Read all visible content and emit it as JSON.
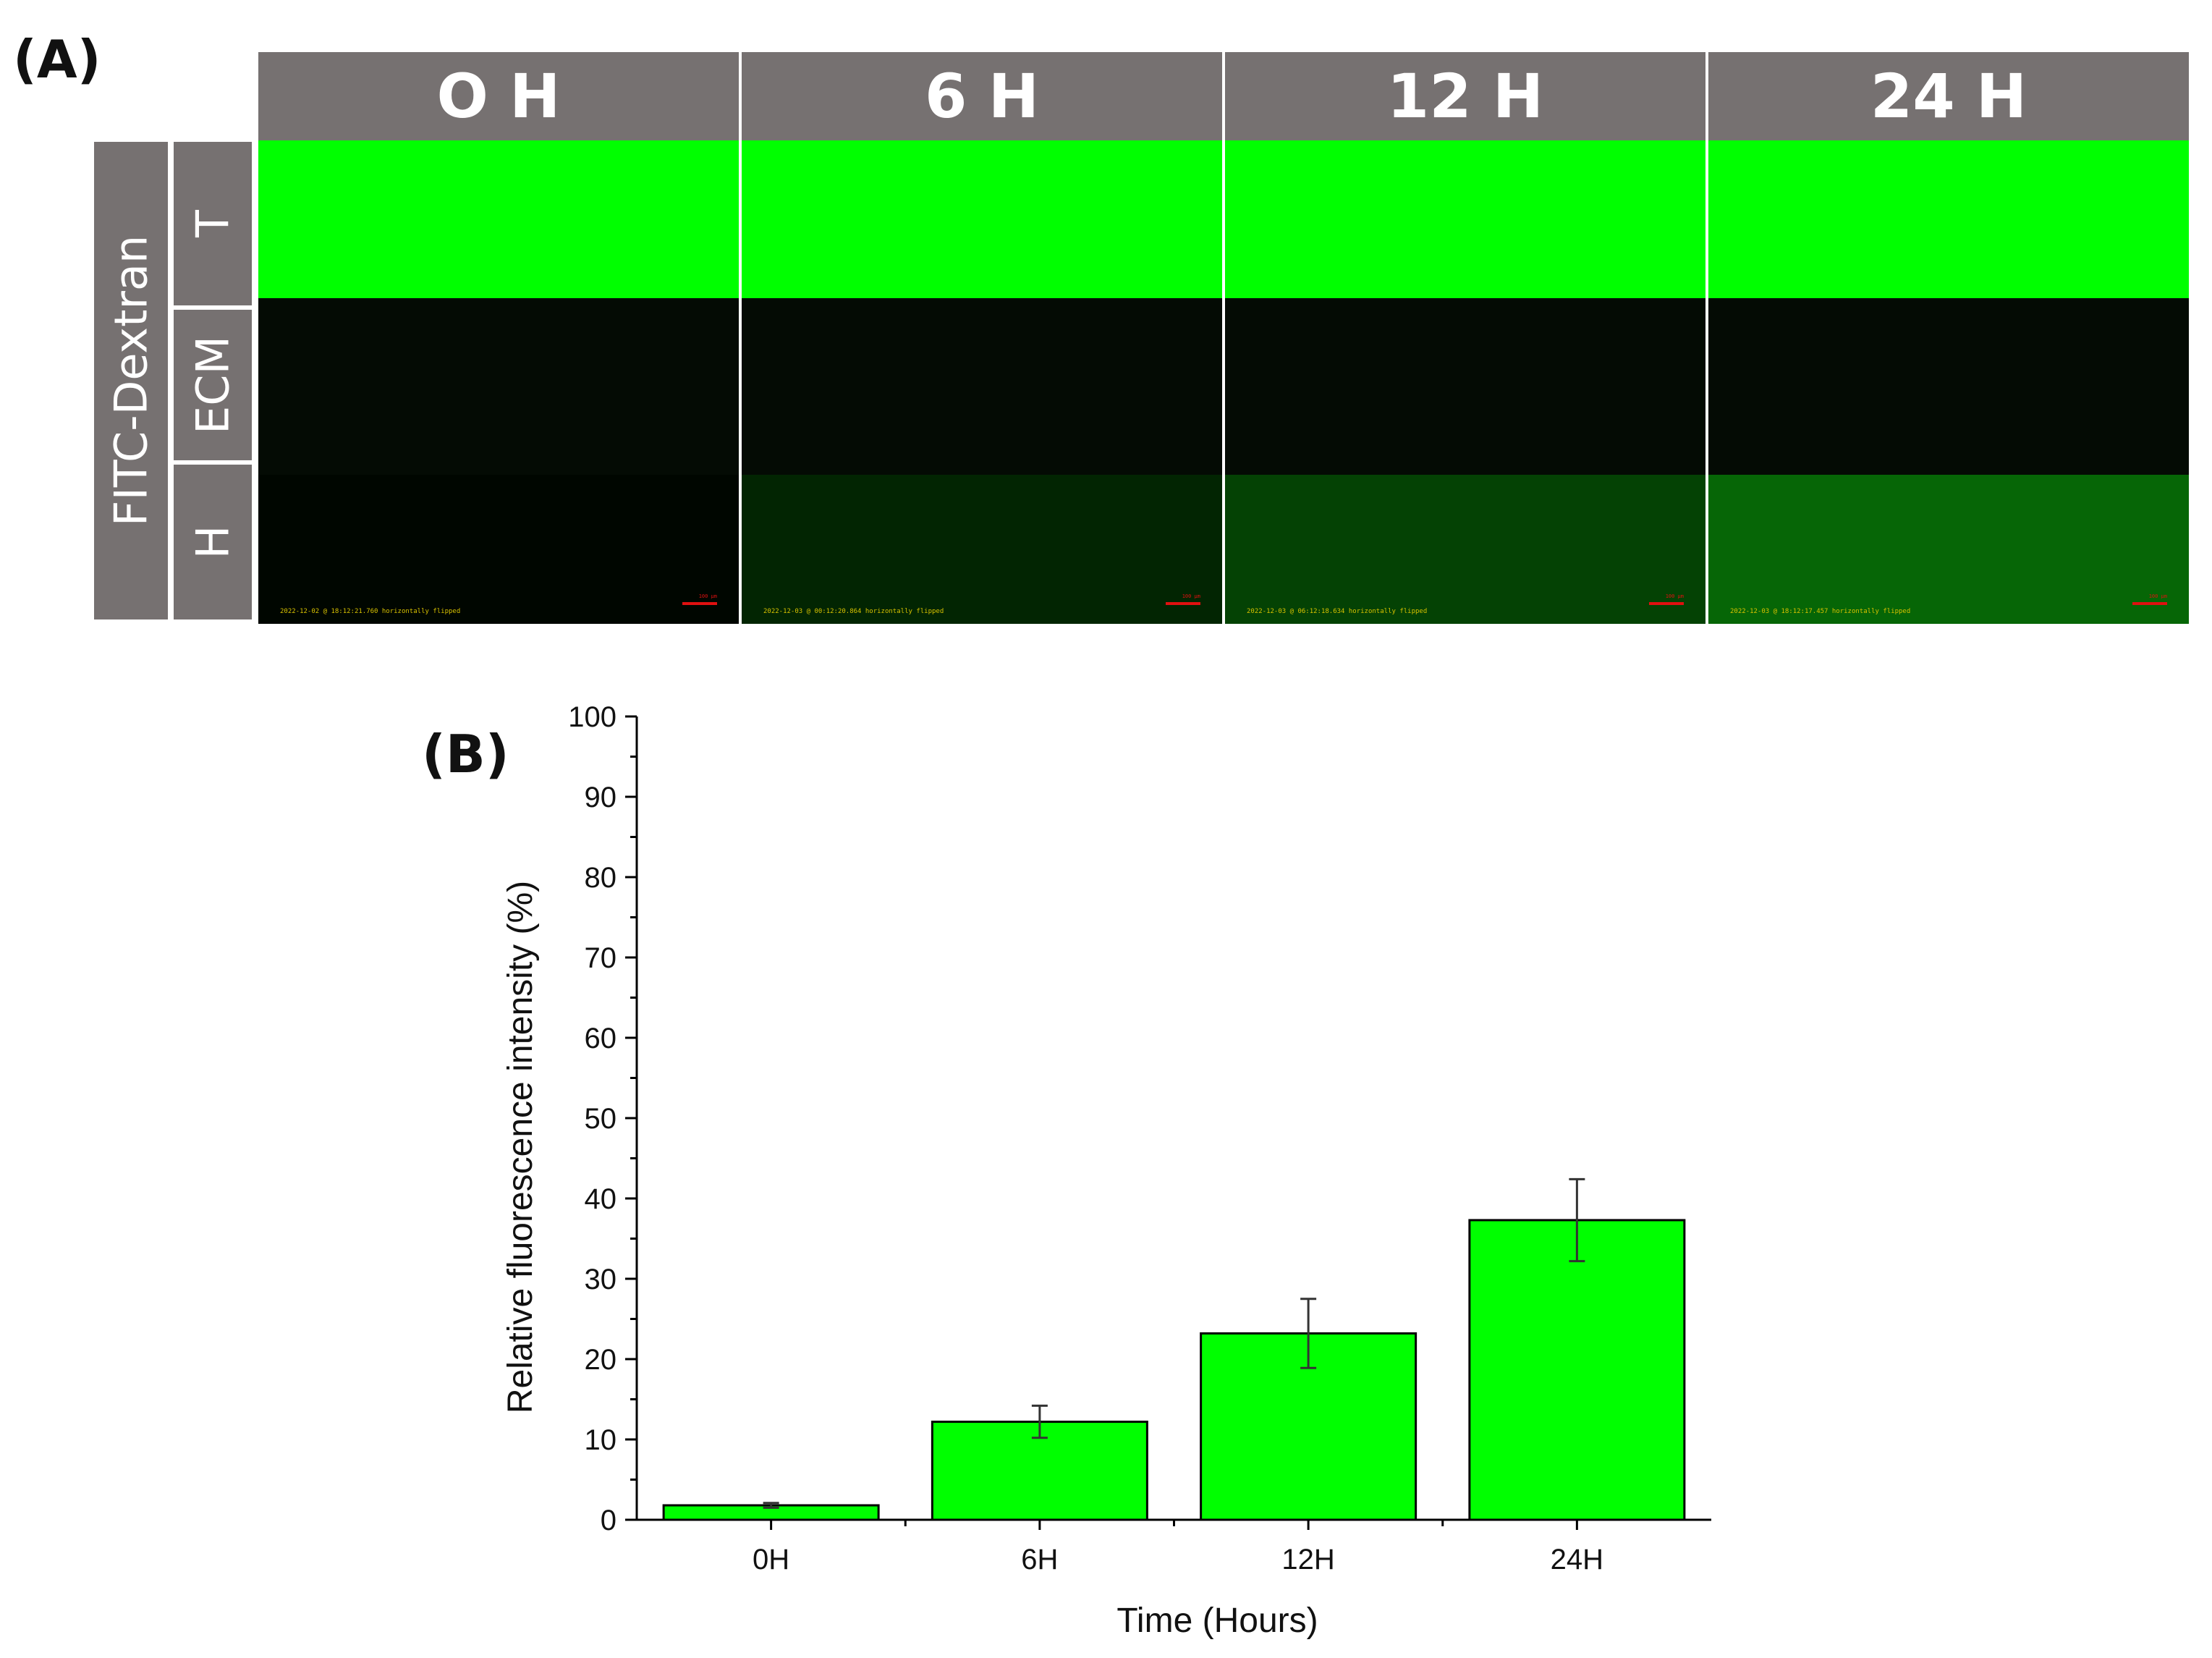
{
  "panel_a": {
    "letter": "(A)",
    "column_headers": [
      "O H",
      "6 H",
      "12 H",
      "24 H"
    ],
    "group_label": "FITC-Dextran",
    "row_labels": [
      "T",
      "ECM",
      "H"
    ],
    "image_metadata": [
      "2022-12-02 @ 18:12:21.760 horizontally flipped",
      "2022-12-03 @ 00:12:20.864 horizontally flipped",
      "2022-12-03 @ 06:12:18.634 horizontally flipped",
      "2022-12-03 @ 18:12:17.457 horizontally flipped"
    ],
    "scale_bar_label": "100 µm",
    "colors": {
      "header_bg": "#767171",
      "fitc_green": "#00ff00",
      "background": "#030503"
    },
    "h_channel_fluorescence": [
      0.0,
      0.12,
      0.23,
      0.37
    ]
  },
  "chart_data": {
    "type": "bar",
    "panel_letter": "(B)",
    "categories": [
      "0H",
      "6H",
      "12H",
      "24H"
    ],
    "values": [
      1.8,
      12.2,
      23.2,
      37.3
    ],
    "error": [
      0.3,
      2.0,
      4.3,
      5.1
    ],
    "xlabel": "Time (Hours)",
    "ylabel": "Relative fluorescence intensity (%)",
    "ylim": [
      0,
      100
    ],
    "yticks": [
      0,
      10,
      20,
      30,
      40,
      50,
      60,
      70,
      80,
      90,
      100
    ],
    "bar_color": "#00ff00",
    "grid": false,
    "legend": "none"
  }
}
